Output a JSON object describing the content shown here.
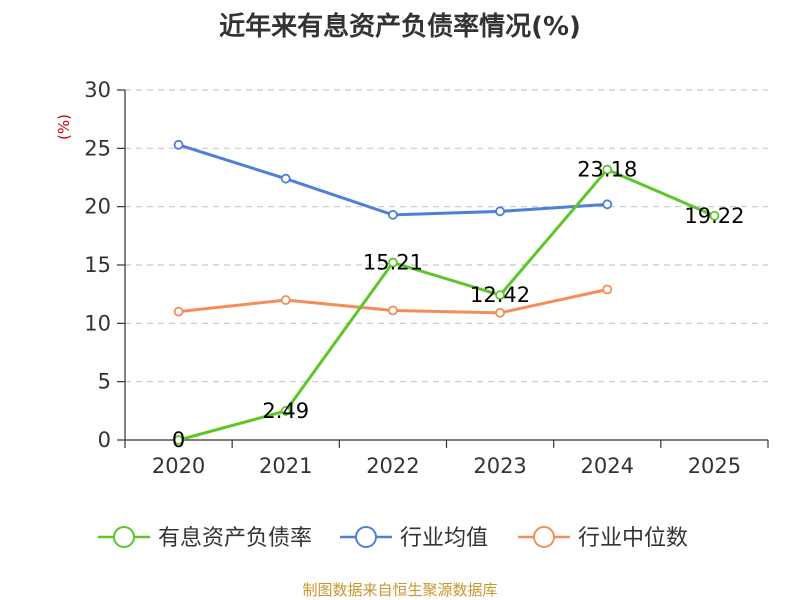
{
  "title": "近年来有息资产负债率情况(%)",
  "source_note": "制图数据来自恒生聚源数据库",
  "chart_data": {
    "type": "line",
    "title": "近年来有息资产负债率情况(%)",
    "y_unit": "(%)",
    "xlabel": "",
    "ylabel": "",
    "categories": [
      "2020",
      "2021",
      "2022",
      "2023",
      "2024",
      "2025"
    ],
    "y_ticks": [
      0,
      5,
      10,
      15,
      20,
      25,
      30
    ],
    "ylim": [
      0,
      30
    ],
    "grid": true,
    "legend_position": "bottom",
    "series": [
      {
        "name": "有息资产负债率",
        "color": "#5dc628",
        "values": [
          0,
          2.49,
          15.21,
          12.42,
          23.18,
          19.22
        ],
        "labels": [
          "0",
          "2.49",
          "15.21",
          "12.42",
          "23.18",
          "19.22"
        ]
      },
      {
        "name": "行业均值",
        "color": "#4f7fd8",
        "values": [
          25.3,
          22.4,
          19.3,
          19.6,
          20.2,
          null
        ]
      },
      {
        "name": "行业中位数",
        "color": "#f58c5a",
        "values": [
          11.0,
          12.0,
          11.1,
          10.9,
          12.9,
          null
        ]
      }
    ]
  }
}
